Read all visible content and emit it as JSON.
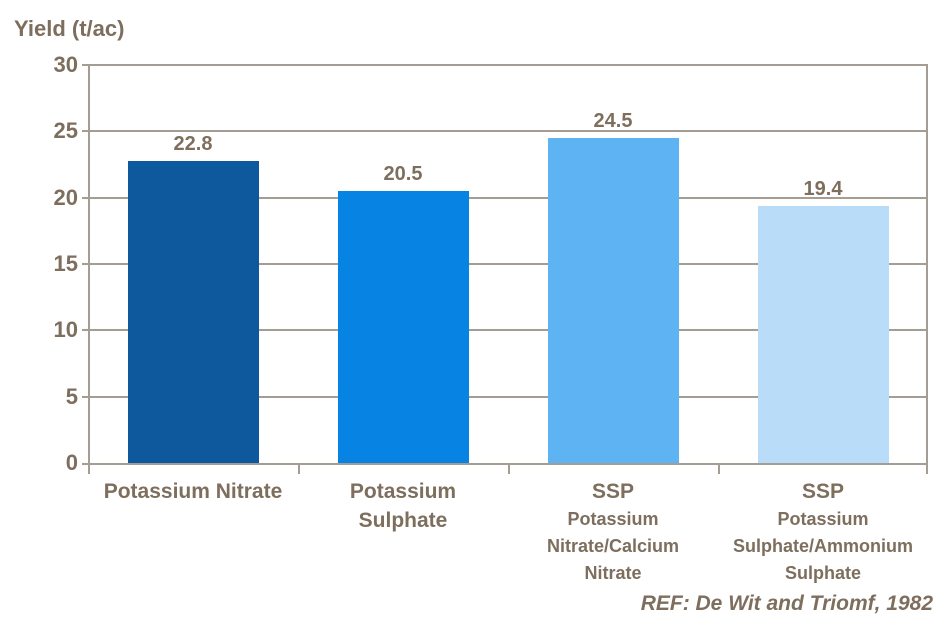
{
  "title": "Yield (t/ac)",
  "footnote": "REF: De Wit and Triomf, 1982",
  "colors": {
    "text": "#7D6E5D",
    "grid": "#A39D93",
    "background": "#FFFFFF"
  },
  "chart_data": {
    "type": "bar",
    "title": "Yield (t/ac)",
    "ylabel": "Yield (t/ac)",
    "xlabel": "",
    "ylim": [
      0,
      30
    ],
    "yticks": [
      0,
      5,
      10,
      15,
      20,
      25,
      30
    ],
    "grid": "horizontal",
    "legend": "none",
    "categories": [
      "Potassium Nitrate",
      "Potassium Sulphate",
      "SSP Potassium Nitrate/Calcium Nitrate",
      "SSP Potassium Sulphate/Ammonium Sulphate"
    ],
    "category_display": [
      {
        "lines": [
          {
            "text": "Potassium Nitrate",
            "size": "main"
          }
        ]
      },
      {
        "lines": [
          {
            "text": "Potassium",
            "size": "main"
          },
          {
            "text": "Sulphate",
            "size": "main"
          }
        ]
      },
      {
        "lines": [
          {
            "text": "SSP",
            "size": "main"
          },
          {
            "text": "Potassium",
            "size": "sub"
          },
          {
            "text": "Nitrate/Calcium",
            "size": "sub"
          },
          {
            "text": "Nitrate",
            "size": "sub"
          }
        ]
      },
      {
        "lines": [
          {
            "text": "SSP",
            "size": "main"
          },
          {
            "text": "Potassium",
            "size": "sub"
          },
          {
            "text": "Sulphate/Ammonium",
            "size": "sub"
          },
          {
            "text": "Sulphate",
            "size": "sub"
          }
        ]
      }
    ],
    "values": [
      22.8,
      20.5,
      24.5,
      19.4
    ],
    "value_labels": [
      "22.8",
      "20.5",
      "24.5",
      "19.4"
    ],
    "bar_colors": [
      "#0E589D",
      "#0683E3",
      "#5EB3F3",
      "#B9DCF9"
    ],
    "annotation": "REF: De Wit and Triomf, 1982"
  }
}
